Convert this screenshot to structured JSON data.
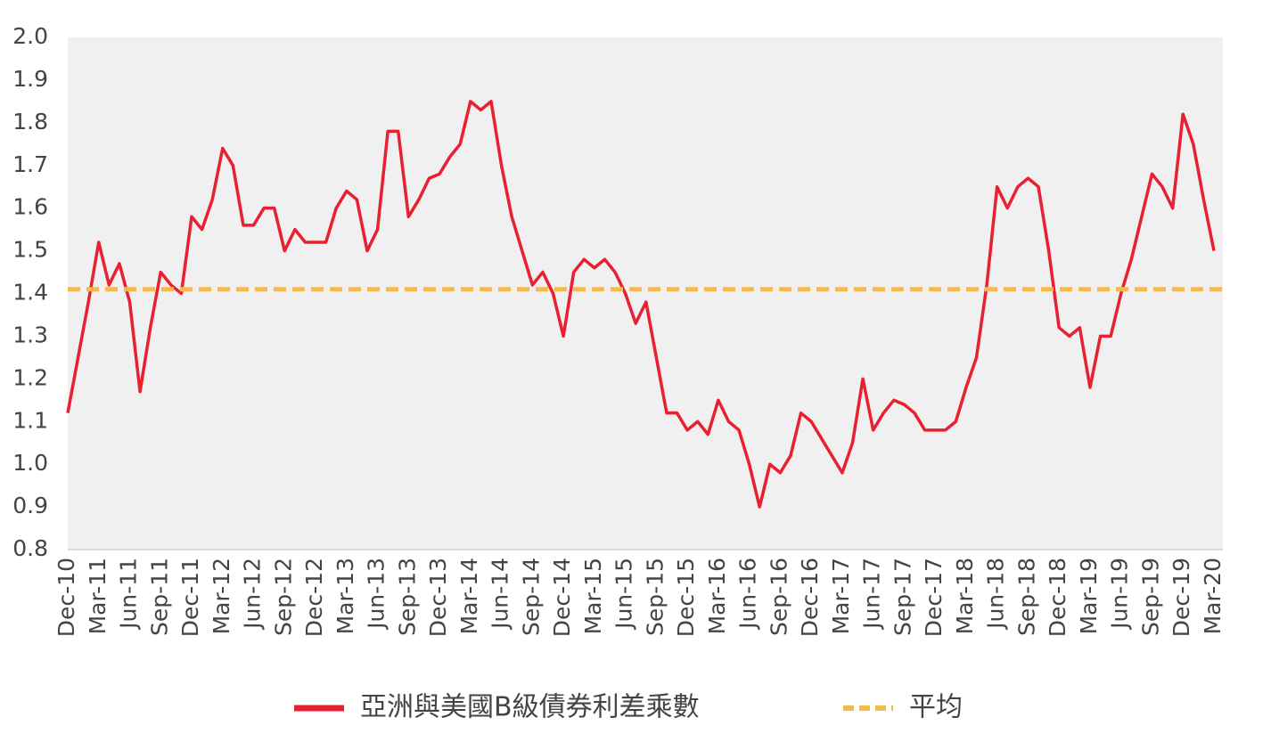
{
  "chart_data": {
    "type": "line",
    "categories": [
      "Dec-10",
      null,
      null,
      "Mar-11",
      null,
      null,
      "Jun-11",
      null,
      null,
      "Sep-11",
      null,
      null,
      "Dec-11",
      null,
      null,
      "Mar-12",
      null,
      null,
      "Jun-12",
      null,
      null,
      "Sep-12",
      null,
      null,
      "Dec-12",
      null,
      null,
      "Mar-13",
      null,
      null,
      "Jun-13",
      null,
      null,
      "Sep-13",
      null,
      null,
      "Dec-13",
      null,
      null,
      "Mar-14",
      null,
      null,
      "Jun-14",
      null,
      null,
      "Sep-14",
      null,
      null,
      "Dec-14",
      null,
      null,
      "Mar-15",
      null,
      null,
      "Jun-15",
      null,
      null,
      "Sep-15",
      null,
      null,
      "Dec-15",
      null,
      null,
      "Mar-16",
      null,
      null,
      "Jun-16",
      null,
      null,
      "Sep-16",
      null,
      null,
      "Dec-16",
      null,
      null,
      "Mar-17",
      null,
      null,
      "Jun-17",
      null,
      null,
      "Sep-17",
      null,
      null,
      "Dec-17",
      null,
      null,
      "Mar-18",
      null,
      null,
      "Jun-18",
      null,
      null,
      "Sep-18",
      null,
      null,
      "Dec-18",
      null,
      null,
      "Mar-19",
      null,
      null,
      "Jun-19",
      null,
      null,
      "Sep-19",
      null,
      null,
      "Dec-19",
      null,
      null,
      "Mar-20"
    ],
    "series": [
      {
        "name": "亞洲與美國B級債券利差乘數",
        "color": "#e8202f",
        "values": [
          1.12,
          1.25,
          1.38,
          1.52,
          1.42,
          1.47,
          1.38,
          1.17,
          1.32,
          1.45,
          1.42,
          1.4,
          1.58,
          1.55,
          1.62,
          1.74,
          1.7,
          1.56,
          1.56,
          1.6,
          1.6,
          1.5,
          1.55,
          1.52,
          1.52,
          1.52,
          1.6,
          1.64,
          1.62,
          1.5,
          1.55,
          1.78,
          1.78,
          1.58,
          1.62,
          1.67,
          1.68,
          1.72,
          1.75,
          1.85,
          1.83,
          1.85,
          1.7,
          1.58,
          1.5,
          1.42,
          1.45,
          1.4,
          1.3,
          1.45,
          1.48,
          1.46,
          1.48,
          1.45,
          1.4,
          1.33,
          1.38,
          1.25,
          1.12,
          1.12,
          1.08,
          1.1,
          1.07,
          1.15,
          1.1,
          1.08,
          1.0,
          0.9,
          1.0,
          0.98,
          1.02,
          1.12,
          1.1,
          1.06,
          1.02,
          0.98,
          1.05,
          1.2,
          1.08,
          1.12,
          1.15,
          1.14,
          1.12,
          1.08,
          1.08,
          1.08,
          1.1,
          1.18,
          1.25,
          1.42,
          1.65,
          1.6,
          1.65,
          1.67,
          1.65,
          1.5,
          1.32,
          1.3,
          1.32,
          1.18,
          1.3,
          1.3,
          1.4,
          1.48,
          1.58,
          1.68,
          1.65,
          1.6,
          1.82,
          1.75,
          1.62,
          1.5
        ]
      }
    ],
    "reference_line": {
      "name": "平均",
      "color": "#f5b94f",
      "value": 1.41
    },
    "ylim": [
      0.8,
      2.0
    ],
    "yticks": [
      0.8,
      0.9,
      {
        "value": 1,
        "label": "1.0"
      },
      1.1,
      1.2,
      1.3,
      1.4,
      1.5,
      1.6,
      1.7,
      1.8,
      1.9,
      {
        "value": 2,
        "label": "2.0"
      }
    ],
    "grid": false
  }
}
